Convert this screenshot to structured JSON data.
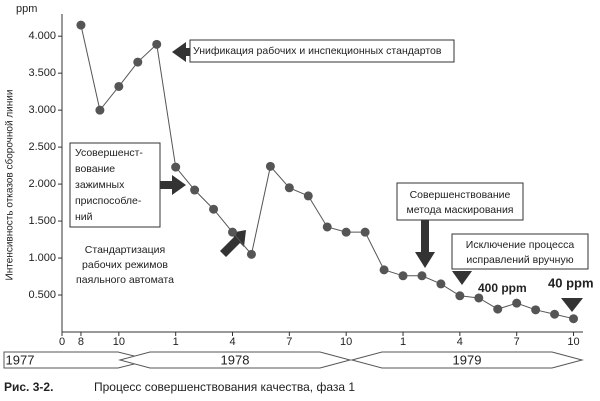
{
  "chart_data": {
    "type": "line",
    "y_unit": "ppm",
    "ylabel": "Интенсивность отказов сборочной линии",
    "x": [
      1,
      2,
      3,
      4,
      5,
      6,
      7,
      8,
      9,
      10,
      11,
      12,
      13,
      14,
      15,
      16,
      17,
      18,
      19,
      20,
      21,
      22,
      23,
      24,
      25,
      26,
      27
    ],
    "series": [
      {
        "color": "#555555",
        "values": [
          4150,
          3000,
          3320,
          3650,
          3890,
          2230,
          1920,
          1660,
          1350,
          1050,
          2240,
          1950,
          1840,
          1420,
          1350,
          1350,
          840,
          760,
          760,
          650,
          490,
          460,
          310,
          390,
          300,
          240,
          180
        ]
      }
    ],
    "xlim": [
      0,
      27.5
    ],
    "xticks": [
      {
        "value": 0,
        "label": "0"
      },
      {
        "value": 1,
        "label": "8"
      },
      {
        "value": 3,
        "label": "10"
      },
      {
        "value": 6,
        "label": "1"
      },
      {
        "value": 9,
        "label": "4"
      },
      {
        "value": 12,
        "label": "7"
      },
      {
        "value": 15,
        "label": "10"
      },
      {
        "value": 18,
        "label": "1"
      },
      {
        "value": 21,
        "label": "4"
      },
      {
        "value": 24,
        "label": "7"
      },
      {
        "value": 27,
        "label": "10"
      }
    ],
    "ylim": [
      0,
      4300
    ],
    "yticks": [
      {
        "value": 500,
        "label": "0.500"
      },
      {
        "value": 1000,
        "label": "1.000"
      },
      {
        "value": 1500,
        "label": "1.500"
      },
      {
        "value": 2000,
        "label": "2.000"
      },
      {
        "value": 2500,
        "label": "2.500"
      },
      {
        "value": 3000,
        "label": "3.000"
      },
      {
        "value": 3500,
        "label": "3.500"
      },
      {
        "value": 4000,
        "label": "4.000"
      }
    ],
    "grid": false,
    "years": [
      "1977",
      "1978",
      "1979"
    ],
    "annotations": {
      "unification": "Унификация рабочих и инспекционных стандартов",
      "fixtures": [
        "Усовершенст-",
        "вование",
        "зажимных",
        "приспособле-",
        "ний"
      ],
      "soldering": [
        "Стандартизация",
        "рабочих режимов",
        "паяльного автомата"
      ],
      "masking": [
        "Совершенствование",
        "метода маскирования"
      ],
      "manual": [
        "Исключение процесса",
        "исправлений вручную"
      ],
      "ppm400": "400 ppm",
      "ppm40": "40 ppm"
    },
    "caption_label": "Рис. 3-2.",
    "caption": "Процесс совершенствования качества, фаза 1"
  }
}
